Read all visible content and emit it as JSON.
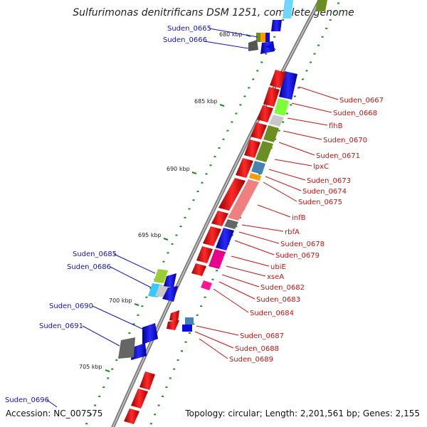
{
  "title": "Sulfurimonas denitrificans DSM 1251, complete genome",
  "footer": {
    "accession": "Accession: NC_007575",
    "stats": "Topology: circular; Length: 2,201,561 bp; Genes: 2,155"
  },
  "kbp_marks": [
    "680 kbp",
    "685 kbp",
    "690 kbp",
    "695 kbp",
    "700 kbp",
    "705 kbp"
  ],
  "left_labels": [
    "Suden_0665",
    "Suden_0666",
    "Suden_0685",
    "Suden_0686",
    "Suden_0690",
    "Suden_0691",
    "Suden_0696"
  ],
  "right_labels": [
    "Suden_0667",
    "Suden_0668",
    "flhB",
    "Suden_0670",
    "Suden_0671",
    "lpxC",
    "Suden_0673",
    "Suden_0674",
    "Suden_0675",
    "infB",
    "rbfA",
    "Suden_0678",
    "Suden_0679",
    "ubiE",
    "xseA",
    "Suden_0682",
    "Suden_0683",
    "Suden_0684",
    "Suden_0687",
    "Suden_0688",
    "Suden_0689"
  ],
  "colors": {
    "forward_strand": "#0a0ae6",
    "reverse_strand": "#e60a0a",
    "backbone": "#888888",
    "tick": "#1a8c1a",
    "left_label": "#1212c8",
    "right_label": "#c81212"
  }
}
